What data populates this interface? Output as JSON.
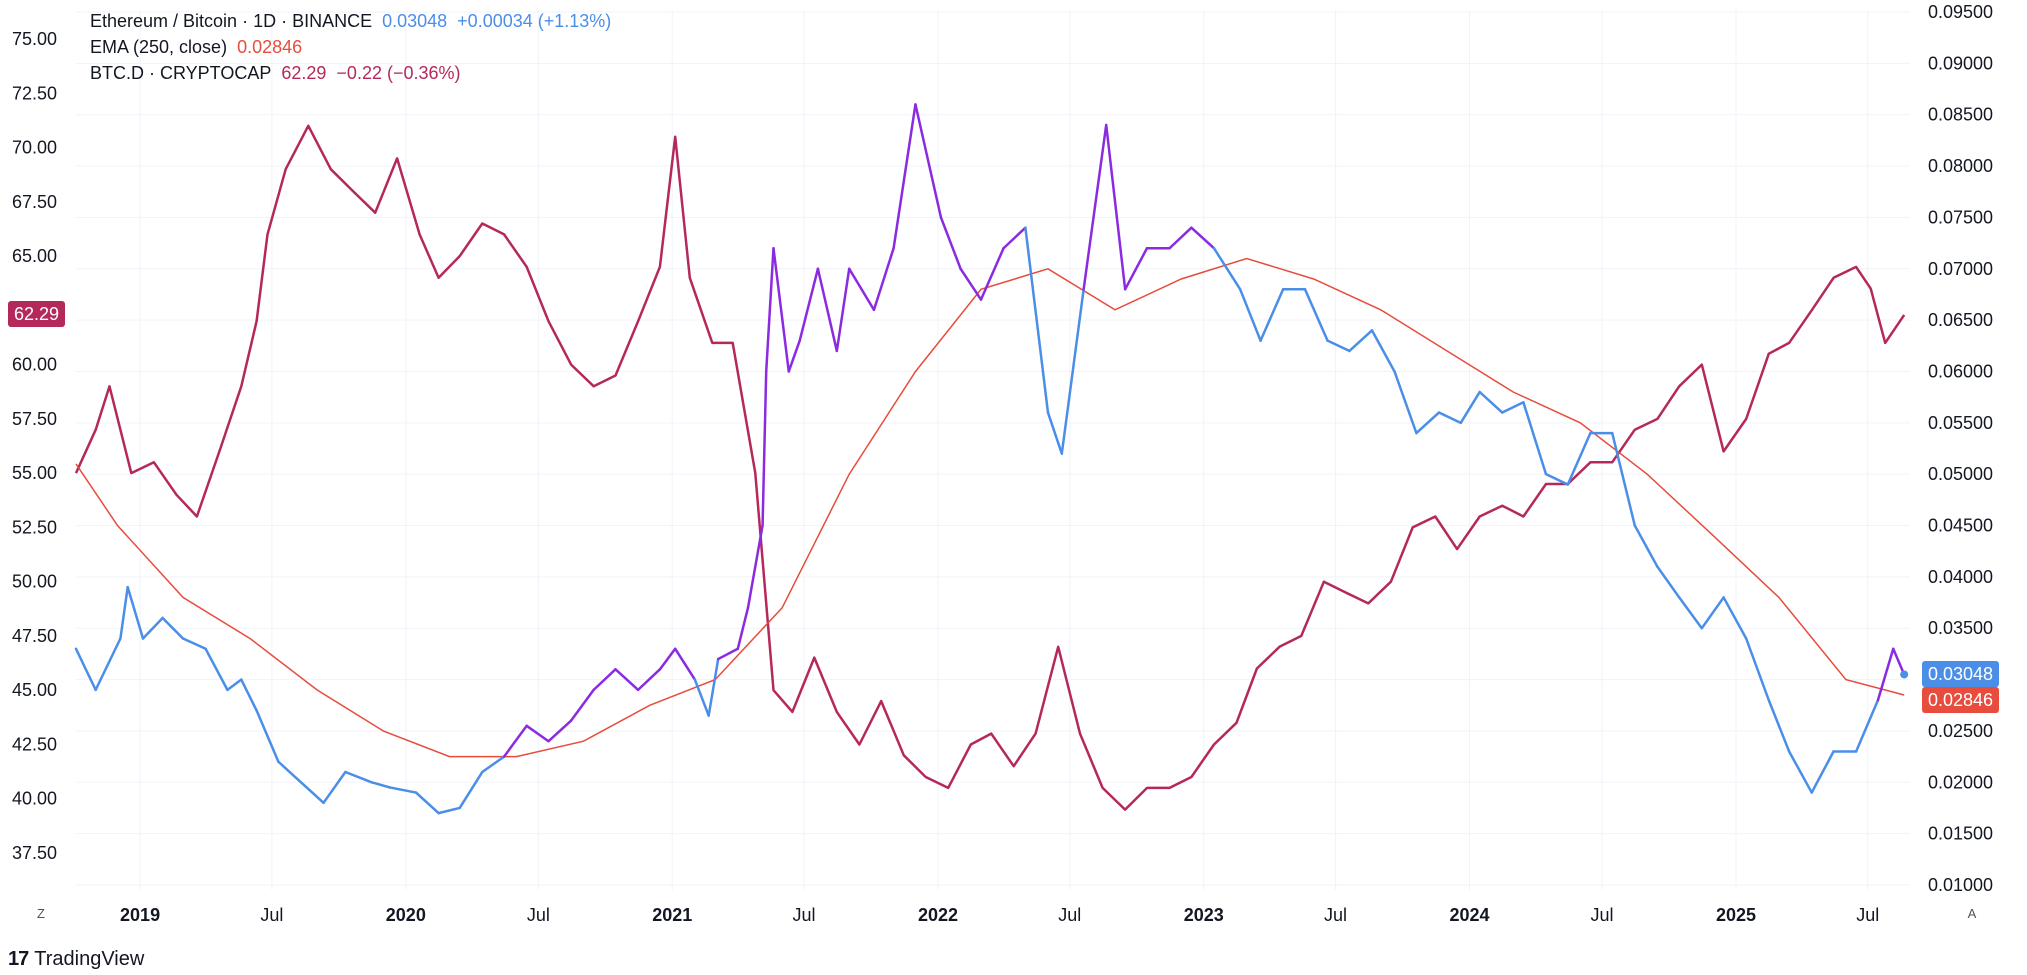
{
  "legend": {
    "main": {
      "name": "Ethereum / Bitcoin · 1D · BINANCE",
      "value": "0.03048",
      "change": "+0.00034 (+1.13%)"
    },
    "ema": {
      "name": "EMA (250, close)",
      "value": "0.02846"
    },
    "btcd": {
      "name": "BTC.D · CRYPTOCAP",
      "value": "62.29",
      "change": "−0.22 (−0.36%)"
    }
  },
  "price_tags": {
    "left": "62.29",
    "right_main": "0.03048",
    "right_ema": "0.02846"
  },
  "corner": {
    "left": "Z",
    "right": "A"
  },
  "brand": {
    "logo": "17",
    "name": "TradingView"
  },
  "colors": {
    "ethbtc_blue": "#4a8ee8",
    "ethbtc_purple": "#8a2be2",
    "ema": "#e74c3c",
    "btcd": "#b5285c",
    "grid": "#f0f3fa"
  },
  "chart_data": {
    "type": "line",
    "x_ticks": [
      {
        "label": "2019",
        "date": "2019-01-01",
        "bold": true
      },
      {
        "label": "Jul",
        "date": "2019-07-01"
      },
      {
        "label": "2020",
        "date": "2020-01-01",
        "bold": true
      },
      {
        "label": "Jul",
        "date": "2020-07-01"
      },
      {
        "label": "2021",
        "date": "2021-01-01",
        "bold": true
      },
      {
        "label": "Jul",
        "date": "2021-07-01"
      },
      {
        "label": "2022",
        "date": "2022-01-01",
        "bold": true
      },
      {
        "label": "Jul",
        "date": "2022-07-01"
      },
      {
        "label": "2023",
        "date": "2023-01-01",
        "bold": true
      },
      {
        "label": "Jul",
        "date": "2023-07-01"
      },
      {
        "label": "2024",
        "date": "2024-01-01",
        "bold": true
      },
      {
        "label": "Jul",
        "date": "2024-07-01"
      },
      {
        "label": "2025",
        "date": "2025-01-01",
        "bold": true
      },
      {
        "label": "Jul",
        "date": "2025-07-01"
      }
    ],
    "left_axis": {
      "ticks": [
        "37.50",
        "40.00",
        "42.50",
        "45.00",
        "47.50",
        "50.00",
        "52.50",
        "55.00",
        "57.50",
        "60.00",
        "62.50",
        "65.00",
        "67.50",
        "70.00",
        "72.50",
        "75.00"
      ],
      "range": [
        37.5,
        75.0
      ]
    },
    "right_axis": {
      "ticks": [
        "0.01000",
        "0.01500",
        "0.02000",
        "0.02500",
        "0.03000",
        "0.03500",
        "0.04000",
        "0.04500",
        "0.05000",
        "0.05500",
        "0.06000",
        "0.06500",
        "0.07000",
        "0.07500",
        "0.08000",
        "0.08500",
        "0.09000",
        "0.09500"
      ],
      "range": [
        0.01,
        0.095
      ]
    },
    "series": [
      {
        "name": "Ethereum / Bitcoin",
        "axis": "right",
        "points": [
          [
            "2018-10-05",
            0.033
          ],
          [
            "2018-11-01",
            0.029
          ],
          [
            "2018-12-05",
            0.034
          ],
          [
            "2018-12-15",
            0.039
          ],
          [
            "2019-01-05",
            0.034
          ],
          [
            "2019-02-01",
            0.036
          ],
          [
            "2019-03-01",
            0.034
          ],
          [
            "2019-04-01",
            0.033
          ],
          [
            "2019-05-01",
            0.029
          ],
          [
            "2019-05-20",
            0.03
          ],
          [
            "2019-06-10",
            0.027
          ],
          [
            "2019-07-10",
            0.022
          ],
          [
            "2019-08-10",
            0.02
          ],
          [
            "2019-09-10",
            0.018
          ],
          [
            "2019-10-10",
            0.021
          ],
          [
            "2019-11-15",
            0.02
          ],
          [
            "2019-12-10",
            0.0195
          ],
          [
            "2020-01-15",
            0.019
          ],
          [
            "2020-02-15",
            0.017
          ],
          [
            "2020-03-15",
            0.0175
          ],
          [
            "2020-04-15",
            0.021
          ],
          [
            "2020-05-15",
            0.0225
          ],
          [
            "2020-06-15",
            0.0255
          ],
          [
            "2020-07-15",
            0.024
          ],
          [
            "2020-08-15",
            0.026
          ],
          [
            "2020-09-15",
            0.029
          ],
          [
            "2020-10-15",
            0.031
          ],
          [
            "2020-11-15",
            0.029
          ],
          [
            "2020-12-15",
            0.031
          ],
          [
            "2021-01-05",
            0.033
          ],
          [
            "2021-02-01",
            0.03
          ],
          [
            "2021-02-20",
            0.0265
          ],
          [
            "2021-03-05",
            0.032
          ],
          [
            "2021-04-01",
            0.033
          ],
          [
            "2021-04-15",
            0.037
          ],
          [
            "2021-05-05",
            0.045
          ],
          [
            "2021-05-10",
            0.06
          ],
          [
            "2021-05-20",
            0.072
          ],
          [
            "2021-06-10",
            0.06
          ],
          [
            "2021-06-25",
            0.063
          ],
          [
            "2021-07-20",
            0.07
          ],
          [
            "2021-08-15",
            0.062
          ],
          [
            "2021-09-01",
            0.07
          ],
          [
            "2021-10-05",
            0.066
          ],
          [
            "2021-11-01",
            0.072
          ],
          [
            "2021-12-01",
            0.086
          ],
          [
            "2022-01-05",
            0.075
          ],
          [
            "2022-02-01",
            0.07
          ],
          [
            "2022-03-01",
            0.067
          ],
          [
            "2022-04-01",
            0.072
          ],
          [
            "2022-05-01",
            0.074
          ],
          [
            "2022-06-01",
            0.056
          ],
          [
            "2022-06-20",
            0.052
          ],
          [
            "2022-07-20",
            0.068
          ],
          [
            "2022-08-20",
            0.084
          ],
          [
            "2022-09-15",
            0.068
          ],
          [
            "2022-10-15",
            0.072
          ],
          [
            "2022-11-15",
            0.072
          ],
          [
            "2022-12-15",
            0.074
          ],
          [
            "2023-01-15",
            0.072
          ],
          [
            "2023-02-20",
            0.068
          ],
          [
            "2023-03-20",
            0.063
          ],
          [
            "2023-04-20",
            0.068
          ],
          [
            "2023-05-20",
            0.068
          ],
          [
            "2023-06-20",
            0.063
          ],
          [
            "2023-07-20",
            0.062
          ],
          [
            "2023-08-20",
            0.064
          ],
          [
            "2023-09-20",
            0.06
          ],
          [
            "2023-10-20",
            0.054
          ],
          [
            "2023-11-20",
            0.056
          ],
          [
            "2023-12-20",
            0.055
          ],
          [
            "2024-01-15",
            0.058
          ],
          [
            "2024-02-15",
            0.056
          ],
          [
            "2024-03-15",
            0.057
          ],
          [
            "2024-04-15",
            0.05
          ],
          [
            "2024-05-15",
            0.049
          ],
          [
            "2024-06-15",
            0.054
          ],
          [
            "2024-07-15",
            0.054
          ],
          [
            "2024-08-15",
            0.045
          ],
          [
            "2024-09-15",
            0.041
          ],
          [
            "2024-10-15",
            0.038
          ],
          [
            "2024-11-15",
            0.035
          ],
          [
            "2024-12-15",
            0.038
          ],
          [
            "2025-01-15",
            0.034
          ],
          [
            "2025-02-15",
            0.028
          ],
          [
            "2025-03-15",
            0.023
          ],
          [
            "2025-04-15",
            0.019
          ],
          [
            "2025-05-15",
            0.023
          ],
          [
            "2025-06-15",
            0.023
          ],
          [
            "2025-07-15",
            0.028
          ],
          [
            "2025-08-05",
            0.033
          ],
          [
            "2025-08-20",
            0.0305
          ]
        ]
      },
      {
        "name": "EMA (250, close)",
        "axis": "right",
        "points": [
          [
            "2018-10-05",
            0.051
          ],
          [
            "2018-12-01",
            0.045
          ],
          [
            "2019-03-01",
            0.038
          ],
          [
            "2019-06-01",
            0.034
          ],
          [
            "2019-09-01",
            0.029
          ],
          [
            "2019-12-01",
            0.025
          ],
          [
            "2020-03-01",
            0.0225
          ],
          [
            "2020-06-01",
            0.0225
          ],
          [
            "2020-09-01",
            0.024
          ],
          [
            "2020-12-01",
            0.0275
          ],
          [
            "2021-03-01",
            0.03
          ],
          [
            "2021-06-01",
            0.037
          ],
          [
            "2021-09-01",
            0.05
          ],
          [
            "2021-12-01",
            0.06
          ],
          [
            "2022-03-01",
            0.068
          ],
          [
            "2022-06-01",
            0.07
          ],
          [
            "2022-09-01",
            0.066
          ],
          [
            "2022-12-01",
            0.069
          ],
          [
            "2023-03-01",
            0.071
          ],
          [
            "2023-06-01",
            0.069
          ],
          [
            "2023-09-01",
            0.066
          ],
          [
            "2023-12-01",
            0.062
          ],
          [
            "2024-03-01",
            0.058
          ],
          [
            "2024-06-01",
            0.055
          ],
          [
            "2024-09-01",
            0.05
          ],
          [
            "2024-12-01",
            0.044
          ],
          [
            "2025-03-01",
            0.038
          ],
          [
            "2025-06-01",
            0.03
          ],
          [
            "2025-08-20",
            0.0285
          ]
        ]
      },
      {
        "name": "BTC.D · CRYPTOCAP",
        "axis": "left",
        "points": [
          [
            "2018-10-05",
            55.0
          ],
          [
            "2018-11-01",
            57.0
          ],
          [
            "2018-11-20",
            59.0
          ],
          [
            "2018-12-20",
            55.0
          ],
          [
            "2019-01-20",
            55.5
          ],
          [
            "2019-02-20",
            54.0
          ],
          [
            "2019-03-20",
            53.0
          ],
          [
            "2019-04-20",
            56.0
          ],
          [
            "2019-05-20",
            59.0
          ],
          [
            "2019-06-10",
            62.0
          ],
          [
            "2019-06-25",
            66.0
          ],
          [
            "2019-07-20",
            69.0
          ],
          [
            "2019-08-20",
            71.0
          ],
          [
            "2019-09-20",
            69.0
          ],
          [
            "2019-10-20",
            68.0
          ],
          [
            "2019-11-20",
            67.0
          ],
          [
            "2019-12-20",
            69.5
          ],
          [
            "2020-01-20",
            66.0
          ],
          [
            "2020-02-15",
            64.0
          ],
          [
            "2020-03-15",
            65.0
          ],
          [
            "2020-04-15",
            66.5
          ],
          [
            "2020-05-15",
            66.0
          ],
          [
            "2020-06-15",
            64.5
          ],
          [
            "2020-07-15",
            62.0
          ],
          [
            "2020-08-15",
            60.0
          ],
          [
            "2020-09-15",
            59.0
          ],
          [
            "2020-10-15",
            59.5
          ],
          [
            "2020-11-15",
            62.0
          ],
          [
            "2020-12-15",
            64.5
          ],
          [
            "2021-01-05",
            70.5
          ],
          [
            "2021-01-25",
            64.0
          ],
          [
            "2021-02-25",
            61.0
          ],
          [
            "2021-03-25",
            61.0
          ],
          [
            "2021-04-25",
            55.0
          ],
          [
            "2021-05-20",
            45.0
          ],
          [
            "2021-06-15",
            44.0
          ],
          [
            "2021-07-15",
            46.5
          ],
          [
            "2021-08-15",
            44.0
          ],
          [
            "2021-09-15",
            42.5
          ],
          [
            "2021-10-15",
            44.5
          ],
          [
            "2021-11-15",
            42.0
          ],
          [
            "2021-12-15",
            41.0
          ],
          [
            "2022-01-15",
            40.5
          ],
          [
            "2022-02-15",
            42.5
          ],
          [
            "2022-03-15",
            43.0
          ],
          [
            "2022-04-15",
            41.5
          ],
          [
            "2022-05-15",
            43.0
          ],
          [
            "2022-06-15",
            47.0
          ],
          [
            "2022-07-15",
            43.0
          ],
          [
            "2022-08-15",
            40.5
          ],
          [
            "2022-09-15",
            39.5
          ],
          [
            "2022-10-15",
            40.5
          ],
          [
            "2022-11-15",
            40.5
          ],
          [
            "2022-12-15",
            41.0
          ],
          [
            "2023-01-15",
            42.5
          ],
          [
            "2023-02-15",
            43.5
          ],
          [
            "2023-03-15",
            46.0
          ],
          [
            "2023-04-15",
            47.0
          ],
          [
            "2023-05-15",
            47.5
          ],
          [
            "2023-06-15",
            50.0
          ],
          [
            "2023-07-15",
            49.5
          ],
          [
            "2023-08-15",
            49.0
          ],
          [
            "2023-09-15",
            50.0
          ],
          [
            "2023-10-15",
            52.5
          ],
          [
            "2023-11-15",
            53.0
          ],
          [
            "2023-12-15",
            51.5
          ],
          [
            "2024-01-15",
            53.0
          ],
          [
            "2024-02-15",
            53.5
          ],
          [
            "2024-03-15",
            53.0
          ],
          [
            "2024-04-15",
            54.5
          ],
          [
            "2024-05-15",
            54.5
          ],
          [
            "2024-06-15",
            55.5
          ],
          [
            "2024-07-15",
            55.5
          ],
          [
            "2024-08-15",
            57.0
          ],
          [
            "2024-09-15",
            57.5
          ],
          [
            "2024-10-15",
            59.0
          ],
          [
            "2024-11-15",
            60.0
          ],
          [
            "2024-12-15",
            56.0
          ],
          [
            "2025-01-15",
            57.5
          ],
          [
            "2025-02-15",
            60.5
          ],
          [
            "2025-03-15",
            61.0
          ],
          [
            "2025-04-15",
            62.5
          ],
          [
            "2025-05-15",
            64.0
          ],
          [
            "2025-06-15",
            64.5
          ],
          [
            "2025-07-05",
            63.5
          ],
          [
            "2025-07-25",
            61.0
          ],
          [
            "2025-08-20",
            62.29
          ]
        ]
      }
    ]
  }
}
